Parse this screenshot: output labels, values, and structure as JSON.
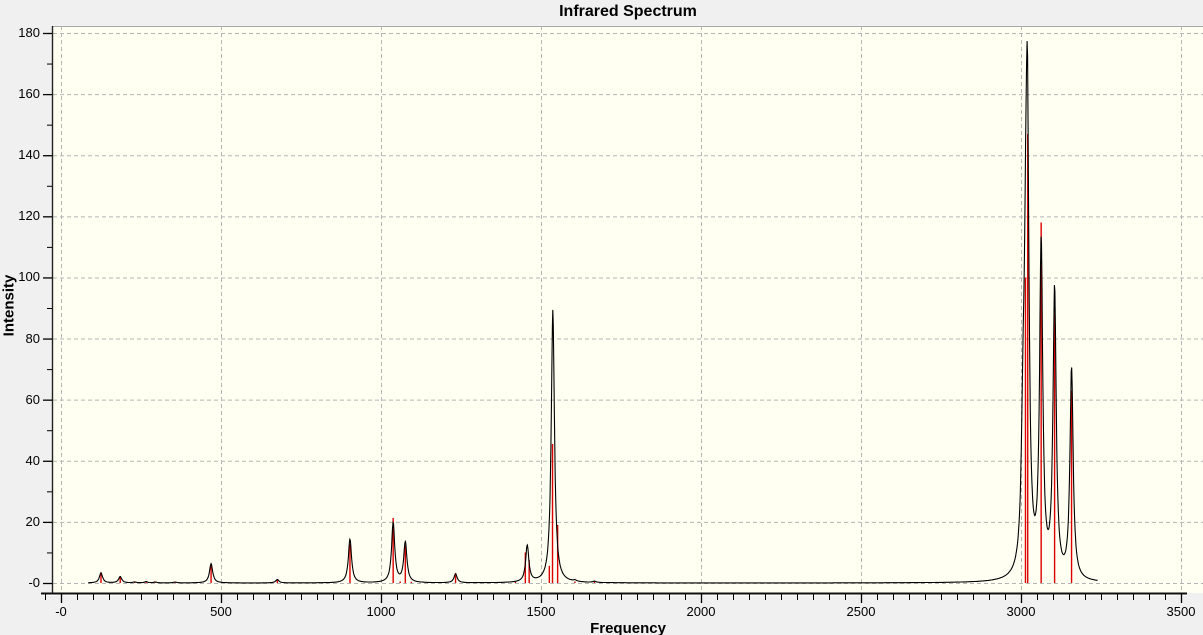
{
  "window": {
    "title": "Infrared Spectrum"
  },
  "chart_data": {
    "type": "line",
    "title": "Infrared Spectrum",
    "xlabel": "Frequency",
    "ylabel": "Intensity",
    "xlim": [
      -25,
      3569
    ],
    "ylim": [
      -3,
      182
    ],
    "x_major_ticks": [
      0,
      500,
      1000,
      1500,
      2000,
      2500,
      3000,
      3500
    ],
    "x_tick_labels": [
      "-0",
      "500",
      "1000",
      "1500",
      "2000",
      "2500",
      "3000",
      "3500"
    ],
    "x_minor_tick_step": 50,
    "y_major_ticks": [
      180,
      160,
      140,
      120,
      100,
      80,
      60,
      40,
      20,
      0
    ],
    "y_tick_labels": [
      "180",
      "160",
      "140",
      "120",
      "100",
      "80",
      "60",
      "40",
      "20",
      "-0"
    ],
    "y_minor_tick_step": 10,
    "grid": {
      "style": "dashed",
      "on": "major",
      "color": "#b5b5b5"
    },
    "plot_background": "#fffff2",
    "outer_background": "#f0f0f0",
    "series": [
      {
        "name": "vibrational-line-spectrum",
        "type": "stick",
        "color": "#dd0000",
        "points": [
          [
            125,
            3.5
          ],
          [
            185,
            2.2
          ],
          [
            230,
            0.3
          ],
          [
            266,
            0.4
          ],
          [
            294,
            0.3
          ],
          [
            356,
            0.3
          ],
          [
            469,
            5.5
          ],
          [
            676,
            1.2
          ],
          [
            903,
            12.7
          ],
          [
            1038,
            21.3
          ],
          [
            1060,
            0.5
          ],
          [
            1076,
            12.2
          ],
          [
            1095,
            0.4
          ],
          [
            1233,
            3.3
          ],
          [
            1420,
            0.6
          ],
          [
            1451,
            10.0
          ],
          [
            1463,
            7.6
          ],
          [
            1526,
            5.6
          ],
          [
            1536,
            45.5
          ],
          [
            1552,
            19.0
          ],
          [
            1606,
            0.5
          ],
          [
            1667,
            0.5
          ],
          [
            3014,
            100.0
          ],
          [
            3021,
            147.0
          ],
          [
            3063,
            118.0
          ],
          [
            3105,
            90.0
          ],
          [
            3158,
            63.0
          ]
        ]
      },
      {
        "name": "broadened-spectrum-curve",
        "type": "lorentzian-sum",
        "color": "#000000",
        "lorentzian_hwhm": 6,
        "curve_domain": [
          85,
          3240
        ],
        "peaks": [
          [
            125,
            3.3
          ],
          [
            185,
            2.1
          ],
          [
            230,
            0.3
          ],
          [
            266,
            0.4
          ],
          [
            294,
            0.3
          ],
          [
            356,
            0.3
          ],
          [
            469,
            6.3
          ],
          [
            676,
            1.1
          ],
          [
            903,
            14.3
          ],
          [
            1038,
            19.5
          ],
          [
            1076,
            13.2
          ],
          [
            1233,
            2.9
          ],
          [
            1457,
            12.0
          ],
          [
            1537,
            89.3
          ],
          [
            1606,
            0.4
          ],
          [
            1667,
            0.4
          ],
          [
            3006,
            35.0
          ],
          [
            3014,
            55.0
          ],
          [
            3020,
            140.0
          ],
          [
            3063,
            108.0
          ],
          [
            3105,
            94.0
          ],
          [
            3158,
            69.0
          ]
        ]
      }
    ]
  }
}
